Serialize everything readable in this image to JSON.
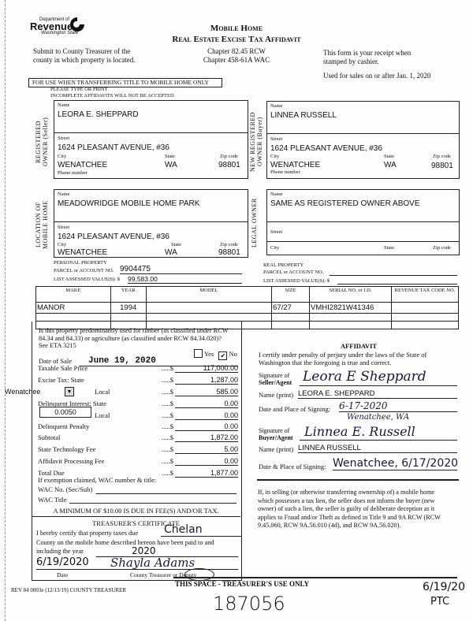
{
  "header": {
    "logo_lines": [
      "Department of",
      "Revenue",
      "Washington State"
    ],
    "title1": "Mobile Home",
    "title2": "Real Estate Excise Tax Affidavit",
    "submit": [
      "Submit to County Treasurer of the",
      "county in which property is located."
    ],
    "chapters": [
      "Chapter 82.45 RCW",
      "Chapter 458-61A WAC"
    ],
    "receipt": [
      "This form is your receipt when",
      "stamped by cashier."
    ],
    "used_for": "Used for sales on or after Jan. 1, 2020"
  },
  "notice": {
    "banner": "FOR USE WHEN TRANSFERRING TITLE TO MOBILE HOME ONLY",
    "type": "PLEASE TYPE OR PRINT",
    "incomplete": "INCOMPLETE AFFIDAVITS WILL NOT BE ACCEPTED"
  },
  "labels": {
    "name": "Name",
    "street": "Street",
    "city": "City",
    "state": "State",
    "zip": "Zip code",
    "phone": "Phone number"
  },
  "seller": {
    "section": "REGISTERED OWNER (Seller)",
    "name": "LEORA E. SHEPPARD",
    "street": "1624 PLEASANT AVENUE, #36",
    "city": "WENATCHEE",
    "state": "WA",
    "zip": "98801"
  },
  "buyer": {
    "section": "NEW REGISTERED OWNER (Buyer)",
    "name": "LINNEA RUSSELL",
    "street": "1624 PLEASANT AVENUE, #36",
    "city": "WENATCHEE",
    "state": "WA",
    "zip": "98801"
  },
  "location": {
    "section": "LOCATION OF MOBILE HOME",
    "name": "MEADOWRIDGE MOBILE HOME PARK",
    "street": "1624 PLEASANT AVENUE, #36",
    "city": "WENATCHEE",
    "state": "WA",
    "zip": "98801"
  },
  "legal_owner": {
    "section": "LEGAL OWNER",
    "name": "SAME AS REGISTERED OWNER ABOVE"
  },
  "parcel": {
    "personal_label1": "PERSONAL PROPERTY",
    "personal_label2": "PARCEL or ACCOUNT NO.",
    "personal_no": "9904475",
    "assessed_label": "LIST ASSESSED VALUE(S): $",
    "assessed": "99,583.00",
    "real_label1": "REAL PROPERTY",
    "real_label2": "PARCEL or ACCOUNT NO.",
    "real_assessed_label": "LIST ASSESSED VALUE(S): $"
  },
  "home_table": {
    "headers": [
      "MAKE",
      "YEAR",
      "MODEL",
      "SIZE",
      "SERIAL NO. or I.D.",
      "REVENUE TAX CODE NO."
    ],
    "rows": [
      [
        "MANOR",
        "1994",
        "",
        "67/27",
        "VMHI2821W41346",
        ""
      ],
      [
        "",
        "",
        "",
        "",
        "",
        ""
      ],
      [
        "",
        "",
        "",
        "",
        "",
        ""
      ]
    ]
  },
  "tax": {
    "question": [
      "Is this property predominantly used for timber (as classified under RCW",
      "84.34 and 84.33) or agriculture (as classified under RCW 84.34.020)?",
      "See ETA 3215"
    ],
    "yes": "Yes",
    "no": "No",
    "answer_no": true,
    "date_label": "Date of Sale",
    "date_of_sale": "June 19, 2020",
    "location_select": "Wenatchee",
    "rate": "0.0050",
    "lines": [
      {
        "label": "Taxable Sale Price",
        "amount": "117,000.00"
      },
      {
        "label": "Excise Tax:   State",
        "amount": "1,287.00"
      },
      {
        "label": "Local",
        "amount": "585.00"
      },
      {
        "label": "Delinquent Interest:   State",
        "amount": "0.00"
      },
      {
        "label": "Local",
        "amount": "0.00"
      },
      {
        "label": "Delinquent Penalty",
        "amount": "0.00"
      },
      {
        "label": "Subtotal",
        "amount": "1,872.00"
      },
      {
        "label": "State Technology Fee",
        "amount": "5.00"
      },
      {
        "label": "Affidavit Processing Fee",
        "amount": "0.00"
      },
      {
        "label": "Total Due",
        "amount": "1,877.00"
      }
    ],
    "exemption": "If exemption claimed, WAC number & title:",
    "wac_no": "WAC No. (Sec/Sub)",
    "wac_title": "WAC Title",
    "minimum": "A MINIMUM OF $10.00 IS DUE IN FEE(S) AND/OR TAX."
  },
  "certificate": {
    "title": "TREASURER'S CERTIFICATE",
    "line1": "I hereby certify that property taxes due",
    "county": "Chelan",
    "line2": "County on the mobile home described hereon have been paid to and",
    "line3": "including the year",
    "year": "2020",
    "date": "6/19/2020",
    "signature": "Shayla Adams",
    "date_label": "Date",
    "sig_label": "County Treasurer or Deputy"
  },
  "affidavit": {
    "title": "AFFIDAVIT",
    "text": [
      "I certify under penalty of perjury under the laws of the State of",
      "Washington that the foregoing is true and correct."
    ],
    "seller_sig_label": [
      "Signature of",
      "Seller/Agent"
    ],
    "seller_sig": "Leora E Sheppard",
    "name_print": "Name (print)",
    "seller_name": "LEORA E. SHEPPARD",
    "seller_date_label": "Date and Place of Signing:",
    "seller_date": "6-17-2020",
    "seller_place": "Wenatchee, WA",
    "buyer_sig_label": [
      "Signature of",
      "Buyer/Agent"
    ],
    "buyer_sig": "Linnea E. Russell",
    "buyer_name": "LINNEA RUSSELL",
    "buyer_date_label": "Date & Place of Signing:",
    "buyer_date": "Wenatchee, 6/17/2020"
  },
  "warning": [
    "If, in selling (or otherwise transferring ownership of) a mobile home",
    "which possesses a tax lien, the seller does not inform the buyer (new",
    "owner) of such a lien, the seller is guilty of deliberate deception as it",
    "applies to Fraud and/or Theft as defined in Title 9 and 9A RCW (RCW",
    "9.45.060, RCW 9A.56.010 (4d), and RCW 9A.56.020)."
  ],
  "footer": {
    "rev": "REV 84 0003e (12/13/19) COUNTY TREASURER",
    "treasurer_use": "THIS SPACE - TREASURER'S USE ONLY",
    "receipt_no": "187056",
    "stamp_date": "6/19/20",
    "stamp_initials": "PTC"
  }
}
